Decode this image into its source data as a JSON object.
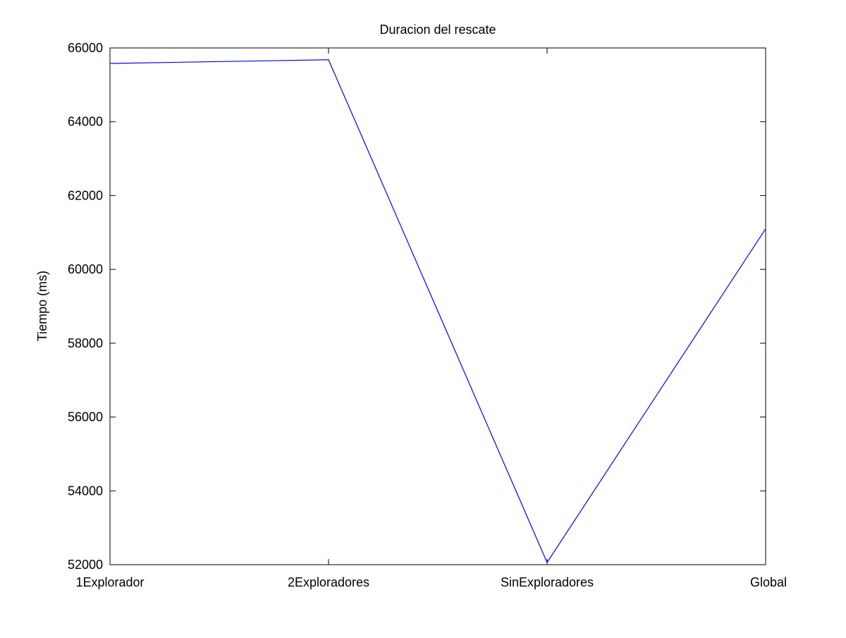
{
  "chart_data": {
    "type": "line",
    "title": "Duracion del rescate",
    "xlabel": "",
    "ylabel": "Tiempo (ms)",
    "categories": [
      "1Explorador",
      "2Exploradores",
      "SinExploradores",
      "Global"
    ],
    "series": [
      {
        "values": [
          65580,
          65680,
          52060,
          61100
        ],
        "color": "#0000ff"
      }
    ],
    "ylim": [
      52000,
      66000
    ],
    "yticks": [
      52000,
      54000,
      56000,
      58000,
      60000,
      62000,
      64000,
      66000
    ],
    "ytick_labels": [
      "52000",
      "54000",
      "56000",
      "58000",
      "60000",
      "62000",
      "64000",
      "66000"
    ],
    "grid": false,
    "legend": "none"
  }
}
